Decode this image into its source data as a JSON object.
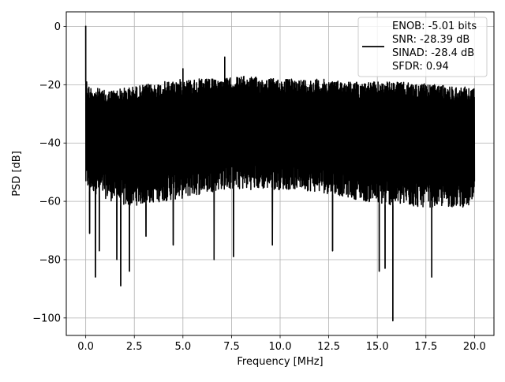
{
  "chart_data": {
    "type": "line",
    "title": "",
    "xlabel": "Frequency [MHz]",
    "ylabel": "PSD [dB]",
    "xlim": [
      -1.0,
      21.0
    ],
    "ylim": [
      -106,
      5
    ],
    "x_ticks": [
      0.0,
      2.5,
      5.0,
      7.5,
      10.0,
      12.5,
      15.0,
      17.5,
      20.0
    ],
    "x_tick_labels": [
      "0.0",
      "2.5",
      "5.0",
      "7.5",
      "10.0",
      "12.5",
      "15.0",
      "17.5",
      "20.0"
    ],
    "y_ticks": [
      0,
      -20,
      -40,
      -60,
      -80,
      -100
    ],
    "y_tick_labels": [
      "0",
      "−20",
      "−40",
      "−60",
      "−80",
      "−100"
    ],
    "grid": true,
    "legend_position": "top-right",
    "legend_lines": [
      "ENOB: -5.01 bits",
      "SNR: -28.39 dB",
      "SINAD: -28.4 dB",
      "SFDR: 0.94"
    ],
    "line_color": "#000000",
    "series": [
      {
        "values_description_free": true,
        "x_range": [
          0.0,
          20.0
        ],
        "upper_envelope": [
          [
            0.0,
            -16
          ],
          [
            0.1,
            -20
          ],
          [
            1.0,
            -22
          ],
          [
            2.0,
            -21
          ],
          [
            3.0,
            -20
          ],
          [
            4.0,
            -19
          ],
          [
            5.0,
            -18
          ],
          [
            6.0,
            -18
          ],
          [
            7.0,
            -18
          ],
          [
            8.0,
            -17
          ],
          [
            10.0,
            -18
          ],
          [
            12.0,
            -18
          ],
          [
            14.0,
            -19
          ],
          [
            16.0,
            -19
          ],
          [
            18.0,
            -20
          ],
          [
            20.0,
            -21
          ]
        ],
        "lower_envelope": [
          [
            0.0,
            -60
          ],
          [
            2.0,
            -66
          ],
          [
            5.0,
            -63
          ],
          [
            7.0,
            -60
          ],
          [
            9.0,
            -60
          ],
          [
            11.0,
            -60
          ],
          [
            13.0,
            -62
          ],
          [
            15.0,
            -65
          ],
          [
            17.0,
            -66
          ],
          [
            20.0,
            -66
          ]
        ],
        "peaks": [
          [
            0.0,
            0.2
          ],
          [
            5.0,
            -14.5
          ],
          [
            7.15,
            -10.5
          ]
        ],
        "dips": [
          [
            0.2,
            -71
          ],
          [
            0.5,
            -86
          ],
          [
            0.7,
            -77
          ],
          [
            1.6,
            -80
          ],
          [
            1.8,
            -89
          ],
          [
            2.25,
            -84
          ],
          [
            3.1,
            -72
          ],
          [
            4.5,
            -75
          ],
          [
            6.6,
            -80
          ],
          [
            7.6,
            -79
          ],
          [
            9.6,
            -75
          ],
          [
            12.7,
            -77
          ],
          [
            15.1,
            -84
          ],
          [
            15.4,
            -83
          ],
          [
            15.8,
            -101
          ],
          [
            17.8,
            -86
          ]
        ]
      }
    ]
  }
}
